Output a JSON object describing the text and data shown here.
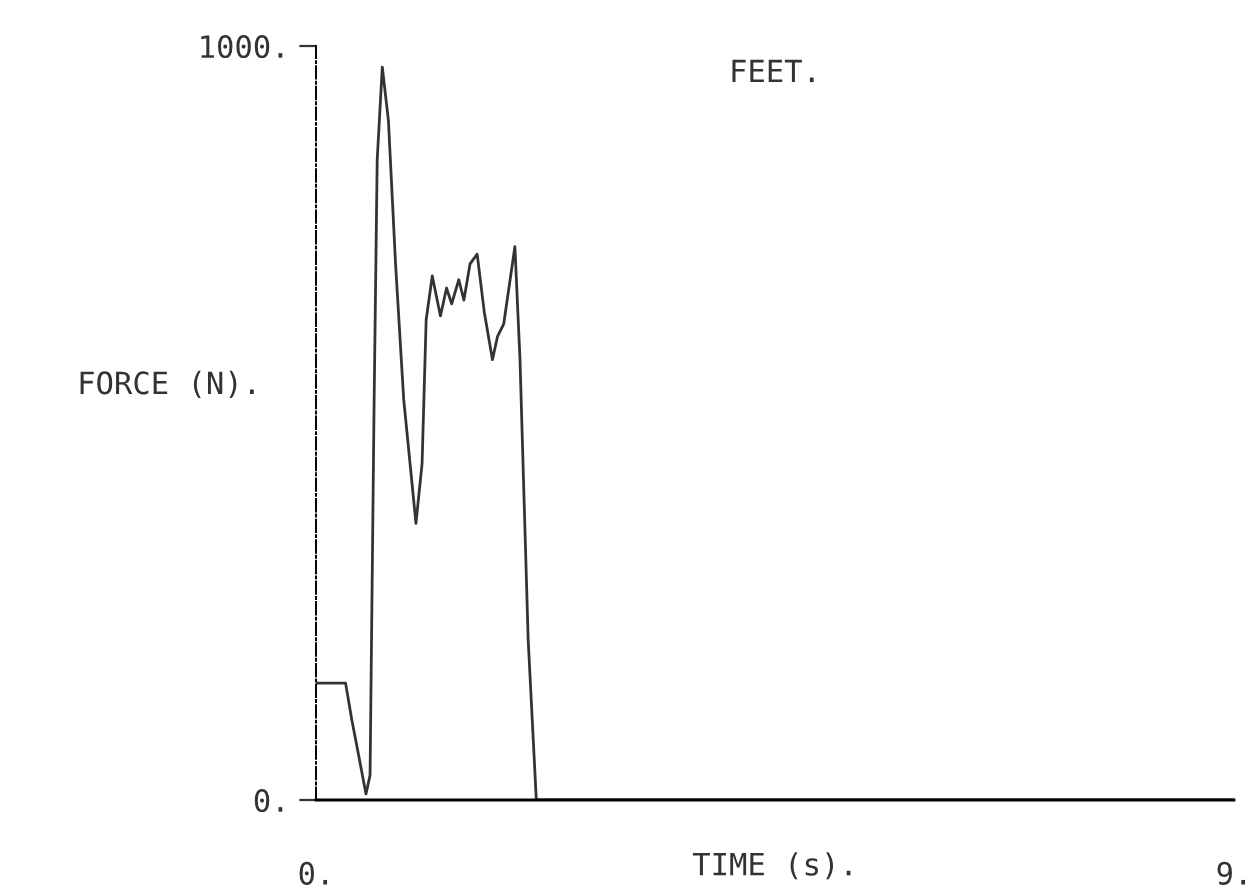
{
  "chart_data": {
    "type": "line",
    "title": "FEET.",
    "xlabel": "TIME (s).",
    "ylabel": "FORCE (N).",
    "xlim": [
      0,
      9
    ],
    "ylim": [
      0,
      1000
    ],
    "xticks": [
      {
        "value": 0,
        "label": "0."
      },
      {
        "value": 9,
        "label": "9."
      }
    ],
    "yticks": [
      {
        "value": 0,
        "label": "0."
      },
      {
        "value": 1000,
        "label": "1000."
      }
    ],
    "grid": false,
    "marker": "none",
    "line_style": "solid",
    "series": [
      {
        "color": "#333333",
        "x": [
          0,
          0.29,
          0.35,
          0.41,
          0.49,
          0.53,
          0.57,
          0.6,
          0.65,
          0.71,
          0.78,
          0.86,
          0.98,
          1.04,
          1.08,
          1.14,
          1.22,
          1.28,
          1.33,
          1.4,
          1.45,
          1.51,
          1.58,
          1.65,
          1.73,
          1.78,
          1.84,
          1.95,
          2.0,
          2.08,
          2.16,
          9
        ],
        "values": [
          155,
          155,
          107,
          65,
          8,
          33,
          531,
          849,
          972,
          901,
          711,
          531,
          367,
          446,
          637,
          695,
          642,
          679,
          658,
          690,
          663,
          711,
          724,
          647,
          584,
          615,
          631,
          734,
          584,
          213,
          0,
          0
        ]
      }
    ]
  }
}
